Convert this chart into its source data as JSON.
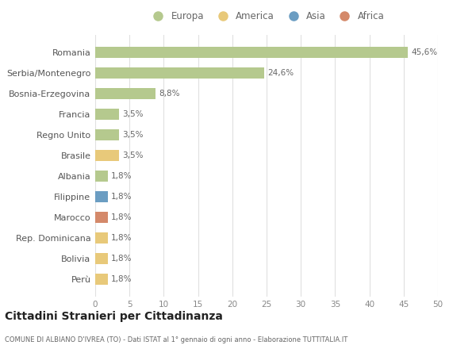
{
  "countries": [
    "Romania",
    "Serbia/Montenegro",
    "Bosnia-Erzegovina",
    "Francia",
    "Regno Unito",
    "Brasile",
    "Albania",
    "Filippine",
    "Marocco",
    "Rep. Dominicana",
    "Bolivia",
    "Perù"
  ],
  "values": [
    45.6,
    24.6,
    8.8,
    3.5,
    3.5,
    3.5,
    1.8,
    1.8,
    1.8,
    1.8,
    1.8,
    1.8
  ],
  "labels": [
    "45,6%",
    "24,6%",
    "8,8%",
    "3,5%",
    "3,5%",
    "3,5%",
    "1,8%",
    "1,8%",
    "1,8%",
    "1,8%",
    "1,8%",
    "1,8%"
  ],
  "colors": [
    "#b5c98e",
    "#b5c98e",
    "#b5c98e",
    "#b5c98e",
    "#b5c98e",
    "#e8c97a",
    "#b5c98e",
    "#6b9dc2",
    "#d4896a",
    "#e8c97a",
    "#e8c97a",
    "#e8c97a"
  ],
  "legend": [
    {
      "label": "Europa",
      "color": "#b5c98e"
    },
    {
      "label": "America",
      "color": "#e8c97a"
    },
    {
      "label": "Asia",
      "color": "#6b9dc2"
    },
    {
      "label": "Africa",
      "color": "#d4896a"
    }
  ],
  "xlim": [
    0,
    50
  ],
  "xticks": [
    0,
    5,
    10,
    15,
    20,
    25,
    30,
    35,
    40,
    45,
    50
  ],
  "title": "Cittadini Stranieri per Cittadinanza",
  "subtitle": "COMUNE DI ALBIANO D'IVREA (TO) - Dati ISTAT al 1° gennaio di ogni anno - Elaborazione TUTTITALIA.IT",
  "background_color": "#ffffff",
  "grid_color": "#e0e0e0",
  "bar_height": 0.55
}
